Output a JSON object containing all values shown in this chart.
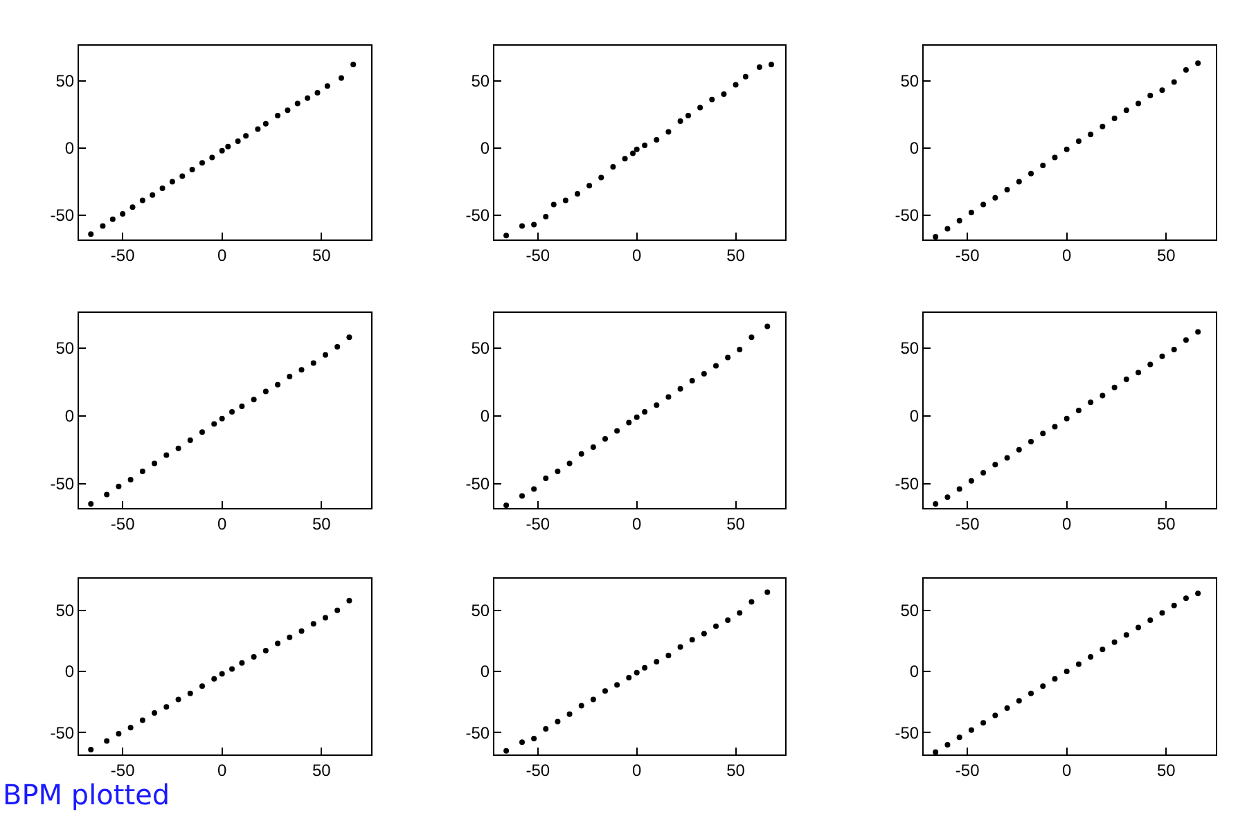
{
  "chart_data": [
    {
      "type": "scatter",
      "color": "#000000",
      "marker": "circle",
      "xlim": [
        -72,
        75
      ],
      "ylim": [
        -68,
        76
      ],
      "xticks": [
        -50,
        0,
        50
      ],
      "yticks": [
        -50,
        0,
        50
      ],
      "x": [
        -66,
        -60,
        -55,
        -50,
        -45,
        -40,
        -35,
        -30,
        -25,
        -20,
        -15,
        -10,
        -5,
        0,
        3,
        8,
        12,
        18,
        22,
        28,
        33,
        38,
        43,
        48,
        53,
        60,
        66
      ],
      "values": [
        -64,
        -58,
        -53,
        -49,
        -44,
        -39,
        -35,
        -30,
        -25,
        -21,
        -16,
        -11,
        -7,
        -2,
        1,
        5,
        9,
        14,
        18,
        24,
        28,
        33,
        37,
        41,
        46,
        52,
        62
      ]
    },
    {
      "type": "scatter",
      "color": "#000000",
      "marker": "circle",
      "xlim": [
        -72,
        75
      ],
      "ylim": [
        -68,
        76
      ],
      "xticks": [
        -50,
        0,
        50
      ],
      "yticks": [
        -50,
        0,
        50
      ],
      "x": [
        -66,
        -58,
        -52,
        -46,
        -42,
        -36,
        -30,
        -24,
        -18,
        -12,
        -6,
        -2,
        0,
        4,
        10,
        16,
        22,
        26,
        32,
        38,
        44,
        50,
        55,
        62,
        68
      ],
      "values": [
        -65,
        -58,
        -57,
        -51,
        -42,
        -39,
        -34,
        -28,
        -22,
        -14,
        -8,
        -4,
        -1,
        2,
        6,
        12,
        20,
        24,
        30,
        36,
        40,
        47,
        53,
        60,
        62
      ]
    },
    {
      "type": "scatter",
      "color": "#000000",
      "marker": "circle",
      "xlim": [
        -72,
        75
      ],
      "ylim": [
        -68,
        76
      ],
      "xticks": [
        -50,
        0,
        50
      ],
      "yticks": [
        -50,
        0,
        50
      ],
      "x": [
        -66,
        -60,
        -54,
        -48,
        -42,
        -36,
        -30,
        -24,
        -18,
        -12,
        -6,
        0,
        6,
        12,
        18,
        24,
        30,
        36,
        42,
        48,
        54,
        60,
        66
      ],
      "values": [
        -66,
        -60,
        -54,
        -48,
        -42,
        -37,
        -31,
        -25,
        -19,
        -13,
        -7,
        -1,
        5,
        10,
        16,
        22,
        28,
        33,
        39,
        43,
        49,
        58,
        63
      ]
    },
    {
      "type": "scatter",
      "color": "#000000",
      "marker": "circle",
      "xlim": [
        -72,
        75
      ],
      "ylim": [
        -68,
        76
      ],
      "xticks": [
        -50,
        0,
        50
      ],
      "yticks": [
        -50,
        0,
        50
      ],
      "x": [
        -66,
        -58,
        -52,
        -46,
        -40,
        -34,
        -28,
        -22,
        -16,
        -10,
        -4,
        0,
        5,
        10,
        16,
        22,
        28,
        34,
        40,
        46,
        52,
        58,
        64
      ],
      "values": [
        -65,
        -58,
        -52,
        -47,
        -41,
        -35,
        -29,
        -24,
        -18,
        -12,
        -6,
        -2,
        3,
        7,
        12,
        18,
        23,
        29,
        34,
        39,
        45,
        51,
        58
      ]
    },
    {
      "type": "scatter",
      "color": "#000000",
      "marker": "circle",
      "xlim": [
        -72,
        75
      ],
      "ylim": [
        -68,
        76
      ],
      "xticks": [
        -50,
        0,
        50
      ],
      "yticks": [
        -50,
        0,
        50
      ],
      "x": [
        -66,
        -58,
        -52,
        -46,
        -40,
        -34,
        -28,
        -22,
        -16,
        -10,
        -4,
        0,
        4,
        10,
        16,
        22,
        28,
        34,
        40,
        46,
        52,
        58,
        66
      ],
      "values": [
        -66,
        -59,
        -54,
        -46,
        -41,
        -35,
        -28,
        -23,
        -17,
        -11,
        -5,
        -1,
        3,
        8,
        14,
        20,
        26,
        31,
        37,
        43,
        49,
        58,
        66
      ]
    },
    {
      "type": "scatter",
      "color": "#000000",
      "marker": "circle",
      "xlim": [
        -72,
        75
      ],
      "ylim": [
        -68,
        76
      ],
      "xticks": [
        -50,
        0,
        50
      ],
      "yticks": [
        -50,
        0,
        50
      ],
      "x": [
        -66,
        -60,
        -54,
        -48,
        -42,
        -36,
        -30,
        -24,
        -18,
        -12,
        -6,
        0,
        6,
        12,
        18,
        24,
        30,
        36,
        42,
        48,
        54,
        60,
        66
      ],
      "values": [
        -65,
        -60,
        -54,
        -48,
        -42,
        -36,
        -31,
        -25,
        -19,
        -13,
        -8,
        -2,
        4,
        10,
        15,
        21,
        27,
        32,
        38,
        44,
        49,
        56,
        62
      ]
    },
    {
      "type": "scatter",
      "color": "#000000",
      "marker": "circle",
      "xlim": [
        -72,
        75
      ],
      "ylim": [
        -68,
        76
      ],
      "xticks": [
        -50,
        0,
        50
      ],
      "yticks": [
        -50,
        0,
        50
      ],
      "x": [
        -66,
        -58,
        -52,
        -46,
        -40,
        -34,
        -28,
        -22,
        -16,
        -10,
        -4,
        0,
        5,
        10,
        16,
        22,
        28,
        34,
        40,
        46,
        52,
        58,
        64
      ],
      "values": [
        -64,
        -57,
        -51,
        -46,
        -40,
        -34,
        -29,
        -23,
        -18,
        -12,
        -6,
        -2,
        2,
        7,
        12,
        17,
        23,
        28,
        33,
        39,
        44,
        50,
        58
      ],
      "annotations": [
        "BPM plotted"
      ]
    },
    {
      "type": "scatter",
      "color": "#000000",
      "marker": "circle",
      "xlim": [
        -72,
        75
      ],
      "ylim": [
        -68,
        76
      ],
      "xticks": [
        -50,
        0,
        50
      ],
      "yticks": [
        -50,
        0,
        50
      ],
      "x": [
        -66,
        -58,
        -52,
        -46,
        -40,
        -34,
        -28,
        -22,
        -16,
        -10,
        -4,
        0,
        4,
        10,
        16,
        22,
        28,
        34,
        40,
        46,
        52,
        58,
        66
      ],
      "values": [
        -65,
        -58,
        -55,
        -47,
        -41,
        -35,
        -28,
        -23,
        -16,
        -11,
        -5,
        -1,
        3,
        8,
        13,
        20,
        26,
        31,
        37,
        42,
        48,
        57,
        65
      ]
    },
    {
      "type": "scatter",
      "color": "#000000",
      "marker": "circle",
      "xlim": [
        -72,
        75
      ],
      "ylim": [
        -68,
        76
      ],
      "xticks": [
        -50,
        0,
        50
      ],
      "yticks": [
        -50,
        0,
        50
      ],
      "x": [
        -66,
        -60,
        -54,
        -48,
        -42,
        -36,
        -30,
        -24,
        -18,
        -12,
        -6,
        0,
        6,
        12,
        18,
        24,
        30,
        36,
        42,
        48,
        54,
        60,
        66
      ],
      "values": [
        -66,
        -60,
        -54,
        -48,
        -42,
        -36,
        -30,
        -24,
        -18,
        -12,
        -6,
        0,
        6,
        12,
        18,
        24,
        30,
        36,
        42,
        48,
        54,
        60,
        64
      ]
    }
  ]
}
